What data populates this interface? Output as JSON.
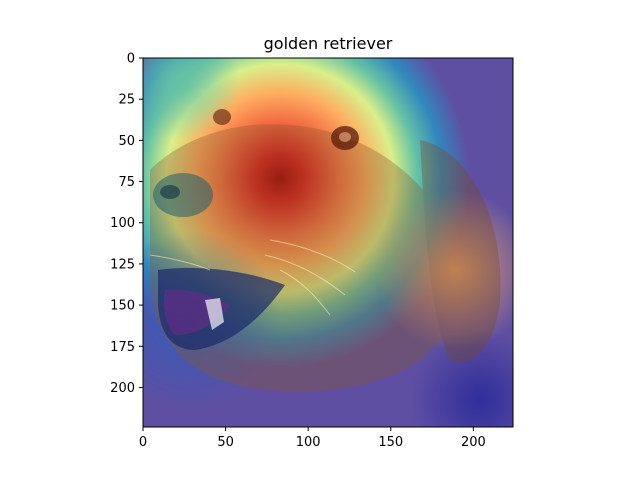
{
  "chart_data": {
    "type": "heatmap",
    "title": "golden retriever",
    "subject": "golden retriever face",
    "overlay_colormap": "jet",
    "xlim": [
      0,
      224
    ],
    "ylim": [
      224,
      0
    ],
    "x_ticks": [
      0,
      50,
      100,
      150,
      200
    ],
    "y_ticks": [
      0,
      25,
      50,
      75,
      100,
      125,
      150,
      175,
      200
    ],
    "hotspot_center": [
      83,
      72
    ],
    "colors": {
      "hot": "#d7191c",
      "warm": "#fdae61",
      "mid": "#a6d96a",
      "cool": "#2b83ba",
      "background_cool": "#5e5ed6",
      "fur": "#8a5a2b"
    }
  }
}
